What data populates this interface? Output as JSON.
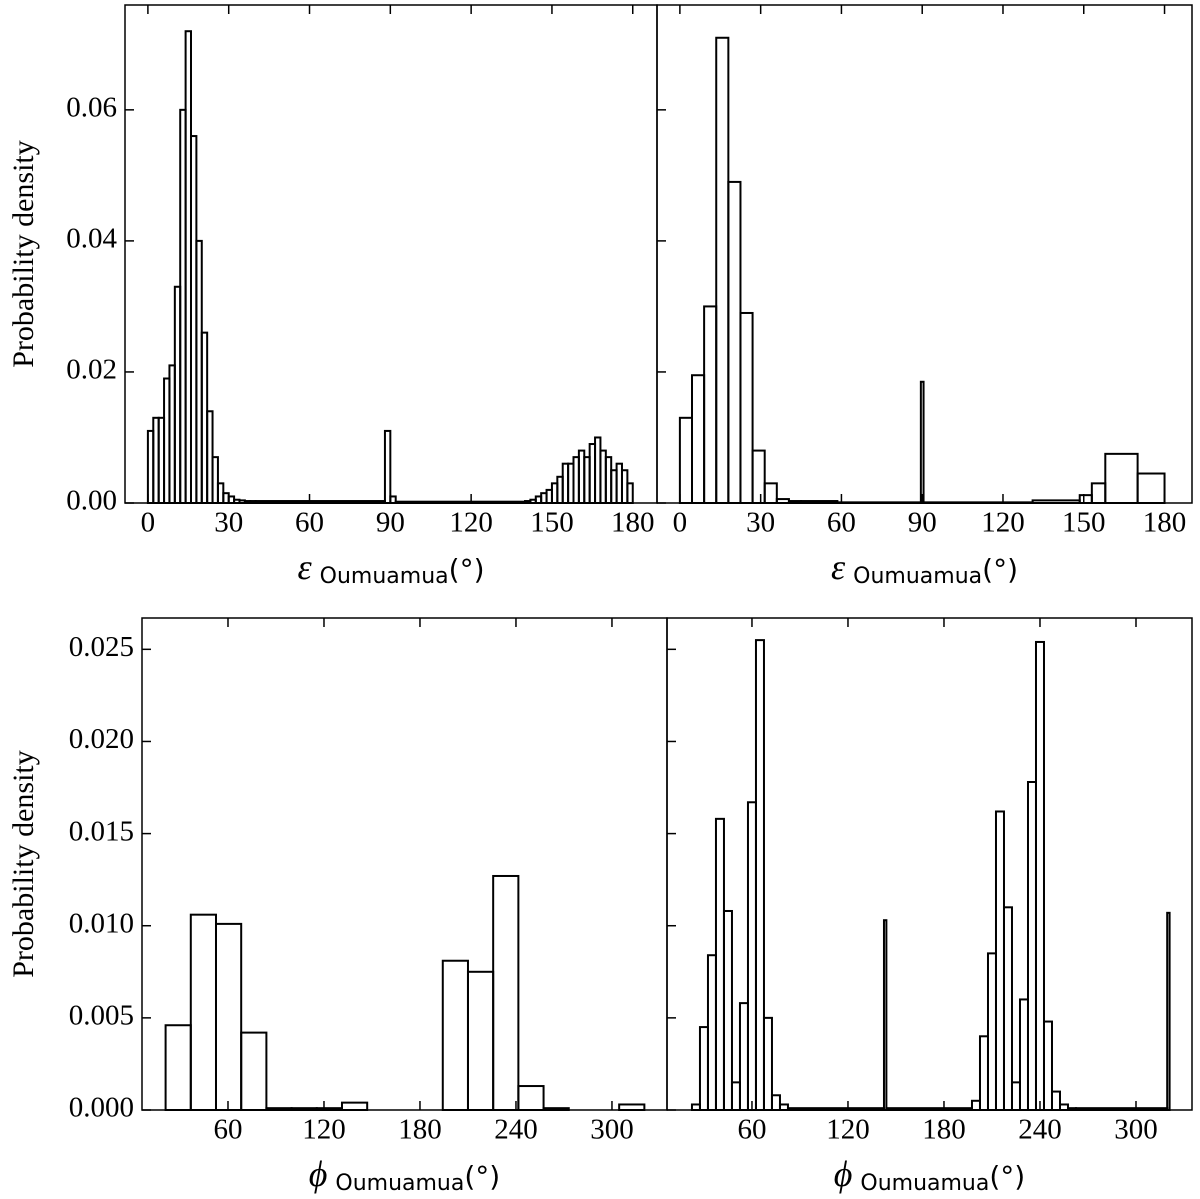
{
  "chart_data": [
    {
      "type": "histogram",
      "xlabel": {
        "symbol": "ε",
        "sub": "Oumuamua",
        "unit": "(°)"
      },
      "ylabel": "Probability density",
      "bins": [
        0,
        2,
        4,
        6,
        8,
        10,
        12,
        14,
        16,
        18,
        20,
        22,
        24,
        26,
        28,
        30,
        32,
        34,
        36,
        38,
        40,
        88,
        90,
        92,
        140,
        142,
        144,
        146,
        148,
        150,
        152,
        154,
        156,
        158,
        160,
        162,
        164,
        166,
        168,
        170,
        172,
        174,
        176,
        178,
        180
      ],
      "values": [
        0.011,
        0.013,
        0.013,
        0.019,
        0.021,
        0.033,
        0.06,
        0.072,
        0.056,
        0.04,
        0.026,
        0.014,
        0.007,
        0.003,
        0.0015,
        0.001,
        0.0005,
        0.0004,
        0.0003,
        0.0003,
        0.0003,
        0.011,
        0.001,
        0.0002,
        0.0003,
        0.0005,
        0.001,
        0.0015,
        0.002,
        0.003,
        0.004,
        0.006,
        0.006,
        0.007,
        0.008,
        0.007,
        0.009,
        0.01,
        0.008,
        0.007,
        0.005,
        0.006,
        0.005,
        0.003
      ],
      "color": "#000000",
      "xlim": [
        -8.5,
        189
      ],
      "ylim": [
        0,
        0.076
      ],
      "xticks": [
        0,
        30,
        60,
        90,
        120,
        150,
        180
      ],
      "yticks": [
        {
          "value": 0,
          "label": "0.00"
        },
        0.02,
        0.04,
        0.06
      ]
    },
    {
      "type": "histogram",
      "xlabel": {
        "symbol": "ε",
        "sub": "Oumuamua",
        "unit": "(°)"
      },
      "bins": [
        0,
        4.5,
        9,
        13.5,
        18,
        22.5,
        27,
        31.5,
        36,
        40.5,
        45,
        58.5,
        89.5,
        90.5,
        131,
        148.5,
        153,
        158,
        170,
        180
      ],
      "values": [
        0.013,
        0.0195,
        0.03,
        0.071,
        0.049,
        0.029,
        0.008,
        0.003,
        0.0006,
        0.0003,
        0.0003,
        0.0001,
        0.0185,
        0.0001,
        0.0004,
        0.0012,
        0.003,
        0.0075,
        0.0045
      ],
      "color": "#000000",
      "xlim": [
        -8.5,
        190.2
      ],
      "ylim": [
        0,
        0.076
      ],
      "xticks": [
        0,
        30,
        60,
        90,
        120,
        150,
        180
      ],
      "yticks": [
        0,
        0.02,
        0.04,
        0.06
      ]
    },
    {
      "type": "histogram",
      "xlabel": {
        "symbol": "ϕ",
        "sub": "Oumuamua",
        "unit": "(°)"
      },
      "ylabel": "Probability density",
      "bins": [
        21,
        36.75,
        52.5,
        68.25,
        84,
        99.75,
        115.5,
        131.25,
        147,
        162.75,
        178.5,
        194.25,
        210,
        225.75,
        241.5,
        257.25,
        273,
        288.75,
        304.5,
        320.25
      ],
      "values": [
        0.0046,
        0.0106,
        0.0101,
        0.0042,
        0.0001,
        0.0001,
        0.0001,
        0.0004,
        0,
        0,
        0,
        0.0081,
        0.0075,
        0.0127,
        0.0013,
        0.0001,
        0,
        0,
        0.0003
      ],
      "color": "#000000",
      "xlim": [
        6.25,
        334.4
      ],
      "ylim": [
        0,
        0.0267
      ],
      "xticks": [
        60,
        120,
        180,
        240,
        300
      ],
      "yticks": [
        {
          "value": 0,
          "label": "0.000"
        },
        0.005,
        {
          "value": 0.01,
          "label": "0.010"
        },
        0.015,
        {
          "value": 0.02,
          "label": "0.020"
        },
        0.025
      ]
    },
    {
      "type": "histogram",
      "xlabel": {
        "symbol": "ϕ",
        "sub": "Oumuamua",
        "unit": "(°)"
      },
      "bins": [
        22.5,
        27.5,
        32.5,
        37.5,
        42.5,
        47.5,
        52.5,
        57.5,
        62.5,
        67.5,
        72.5,
        77.5,
        82.5,
        142.5,
        144,
        197.5,
        202.5,
        207.5,
        212.5,
        217.5,
        222.5,
        227.5,
        232.5,
        237.5,
        242.5,
        247.5,
        252.5,
        257.5,
        262.5,
        319.5,
        321
      ],
      "values": [
        0.0003,
        0.0045,
        0.0084,
        0.0158,
        0.0108,
        0.0015,
        0.0058,
        0.0167,
        0.0255,
        0.005,
        0.0008,
        0.0003,
        0.0001,
        0.0103,
        0.0001,
        0.0005,
        0.004,
        0.0085,
        0.0162,
        0.011,
        0.0015,
        0.006,
        0.0178,
        0.0254,
        0.0048,
        0.001,
        0.0003,
        0.0001,
        0.0001,
        0.0107
      ],
      "color": "#000000",
      "xlim": [
        6.9,
        335
      ],
      "ylim": [
        0,
        0.0267
      ],
      "xticks": [
        60,
        120,
        180,
        240,
        300
      ],
      "yticks": [
        0,
        0.005,
        0.01,
        0.015,
        0.02,
        0.025
      ]
    }
  ]
}
